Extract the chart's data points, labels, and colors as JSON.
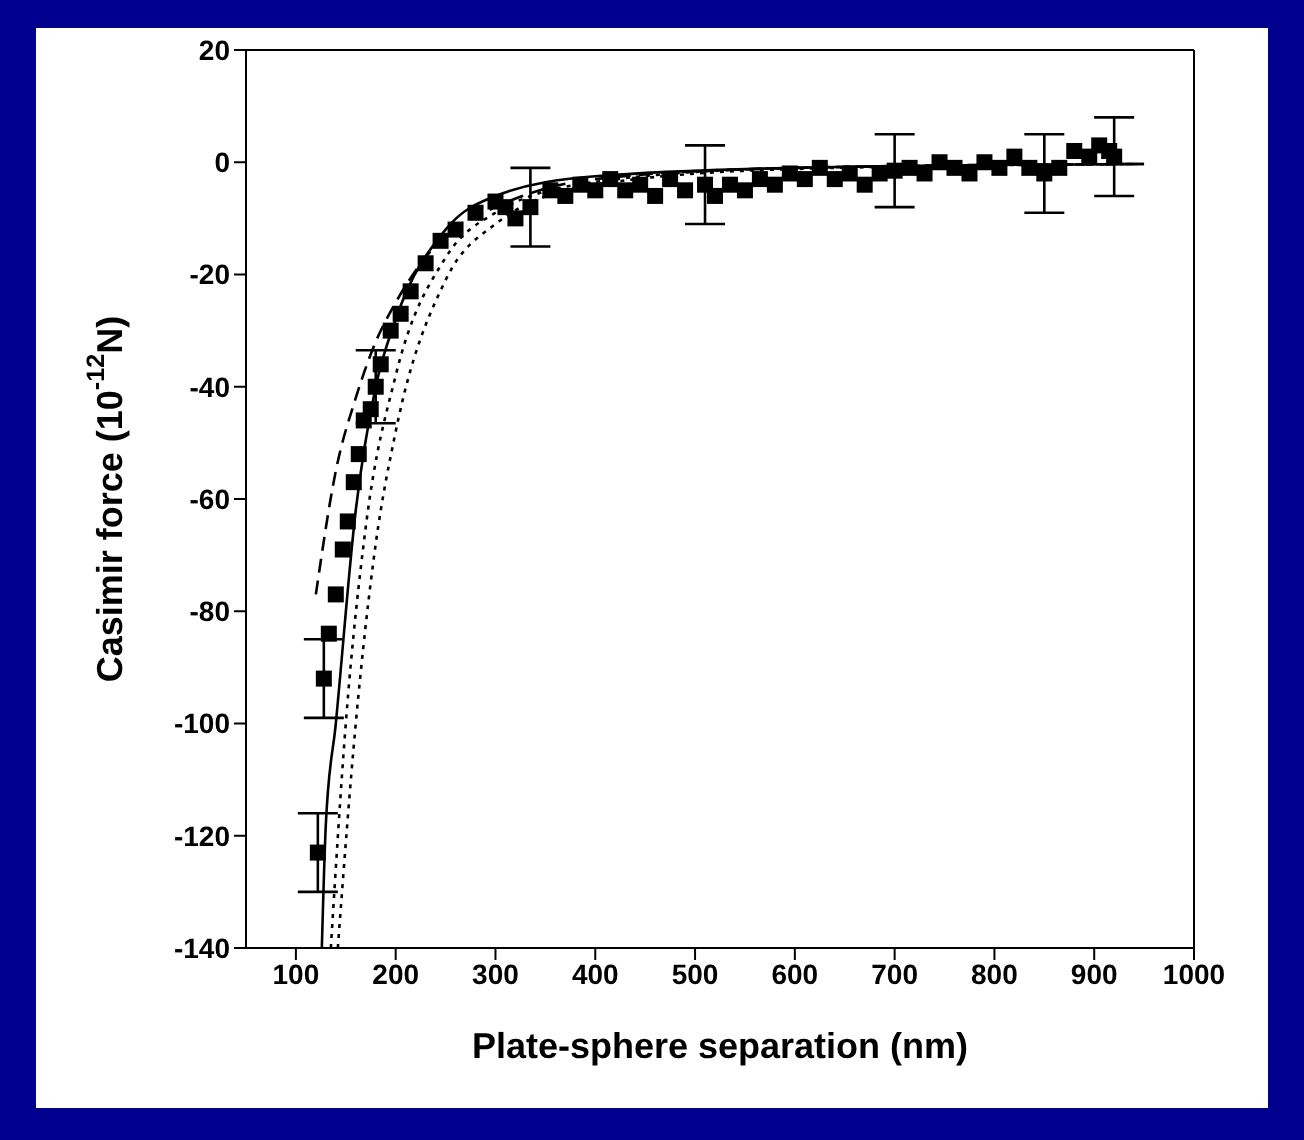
{
  "chart_data": {
    "type": "scatter",
    "xlabel": "Plate-sphere separation (nm)",
    "ylabel": "Casimir force (10$^{-12}$N)",
    "xlim": [
      50,
      1000
    ],
    "ylim": [
      -140,
      20
    ],
    "xticks": [
      100,
      200,
      300,
      400,
      500,
      600,
      700,
      800,
      900,
      1000
    ],
    "yticks": [
      -140,
      -120,
      -100,
      -80,
      -60,
      -40,
      -20,
      0,
      20
    ],
    "series": [
      {
        "marker": "square",
        "color": "#000000",
        "x": [
          122,
          128,
          133,
          140,
          147,
          152,
          158,
          163,
          168,
          175,
          180,
          185,
          195,
          205,
          215,
          230,
          245,
          260,
          280,
          300,
          310,
          320,
          335,
          355,
          370,
          385,
          400,
          415,
          430,
          445,
          460,
          475,
          490,
          510,
          520,
          535,
          550,
          565,
          580,
          595,
          610,
          625,
          640,
          655,
          670,
          685,
          700,
          715,
          730,
          745,
          760,
          775,
          790,
          805,
          820,
          835,
          850,
          865,
          880,
          895,
          905,
          915,
          920
        ],
        "values": [
          -123,
          -92,
          -84,
          -77,
          -69,
          -64,
          -57,
          -52,
          -46,
          -44,
          -40,
          -36,
          -30,
          -27,
          -23,
          -18,
          -14,
          -12,
          -9,
          -7,
          -8,
          -10,
          -8,
          -5,
          -6,
          -4,
          -5,
          -3,
          -5,
          -4,
          -6,
          -3,
          -5,
          -4,
          -6,
          -4,
          -5,
          -3,
          -4,
          -2,
          -3,
          -1,
          -3,
          -2,
          -4,
          -2,
          -1.5,
          -1,
          -2,
          0,
          -1,
          -2,
          0,
          -1,
          1,
          -1,
          -2,
          -1,
          2,
          1,
          3,
          2,
          1
        ],
        "errors": [
          7,
          7,
          null,
          null,
          null,
          null,
          null,
          null,
          null,
          null,
          6.5,
          null,
          null,
          null,
          null,
          null,
          null,
          null,
          null,
          null,
          null,
          null,
          7,
          null,
          null,
          null,
          null,
          null,
          null,
          null,
          null,
          null,
          null,
          7,
          null,
          null,
          null,
          null,
          null,
          null,
          null,
          null,
          null,
          null,
          null,
          null,
          6.5,
          null,
          null,
          null,
          null,
          null,
          null,
          null,
          null,
          null,
          7,
          null,
          null,
          null,
          null,
          null,
          7
        ]
      },
      {
        "type": "line",
        "line_style": "solid",
        "color": "#000000",
        "x": [
          126,
          130,
          140,
          160,
          180,
          200,
          250,
          300,
          400,
          600,
          950
        ],
        "values": [
          -140,
          -118,
          -100,
          -62,
          -40,
          -28,
          -12,
          -6,
          -2.5,
          -1,
          -0.3
        ]
      },
      {
        "type": "line",
        "line_style": "dashed",
        "color": "#000000",
        "x": [
          120,
          140,
          160,
          180,
          200,
          250,
          300,
          400,
          600,
          950
        ],
        "values": [
          -77,
          -55,
          -42,
          -32,
          -25,
          -13,
          -8,
          -3,
          -1,
          -0.3
        ]
      },
      {
        "type": "line",
        "line_style": "dotted",
        "color": "#000000",
        "x": [
          135,
          150,
          170,
          200,
          250,
          300,
          400,
          600,
          950
        ],
        "values": [
          -140,
          -100,
          -65,
          -38,
          -17,
          -9,
          -3.5,
          -1,
          -0.3
        ]
      },
      {
        "type": "line",
        "line_style": "dotted",
        "color": "#000000",
        "x": [
          142,
          160,
          180,
          200,
          250,
          300,
          400,
          600,
          950
        ],
        "values": [
          -140,
          -100,
          -68,
          -48,
          -21,
          -11,
          -4,
          -1.2,
          -0.3
        ]
      }
    ]
  }
}
